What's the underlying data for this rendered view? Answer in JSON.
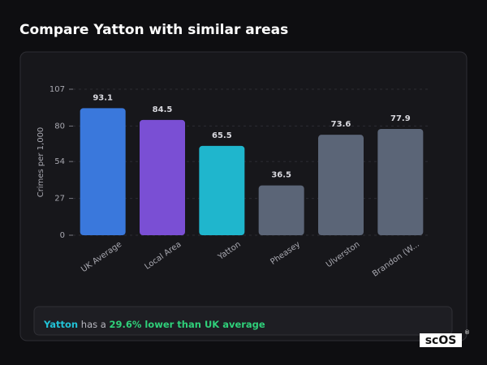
{
  "header": {
    "title": "Compare Yatton with similar areas"
  },
  "chart_data": {
    "type": "bar",
    "y_label": "Crimes per 1,000",
    "categories": [
      "UK Average",
      "Local Area",
      "Yatton",
      "Pheasey",
      "Ulverston",
      "Brandon (W..."
    ],
    "values": [
      93.1,
      84.5,
      65.5,
      36.5,
      73.6,
      77.9
    ],
    "colors": [
      "#3a78dc",
      "#7a4fd4",
      "#1fb6cd",
      "#5b6577",
      "#5b6577",
      "#5b6577"
    ],
    "ylim": [
      0,
      107
    ],
    "yticks": [
      0,
      27,
      54,
      80,
      107
    ],
    "grid": true
  },
  "summary": {
    "area": "Yatton",
    "text": "has a",
    "highlight": "29.6% lower than UK average"
  },
  "logo": {
    "text": "scOS",
    "mark": "®"
  }
}
